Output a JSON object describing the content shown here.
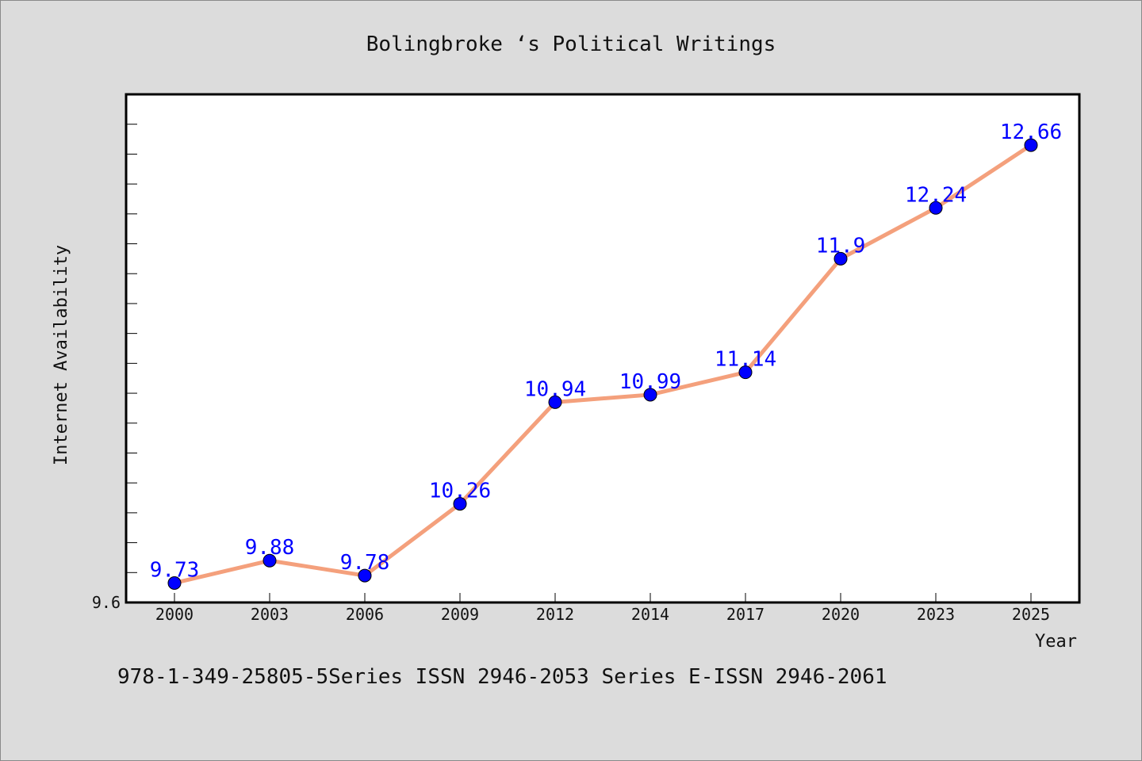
{
  "chart_data": {
    "type": "line",
    "title": "Bolingbroke ‘s Political Writings",
    "xlabel": "Year",
    "ylabel": "Internet Availability",
    "categories": [
      "2000",
      "2003",
      "2006",
      "2009",
      "2012",
      "2014",
      "2017",
      "2020",
      "2023",
      "2025"
    ],
    "series": [
      {
        "values": [
          9.73,
          9.88,
          9.78,
          10.26,
          10.94,
          10.99,
          11.14,
          11.9,
          12.24,
          12.66
        ],
        "line_color": "#f4a07c",
        "marker_color": "#0000ff"
      }
    ],
    "data_labels": [
      "9.73",
      "9.88",
      "9.78",
      "10.26",
      "10.94",
      "10.99",
      "11.14",
      "11.9",
      "12.24",
      "12.66"
    ],
    "ylim": [
      9.6,
      13.0
    ],
    "y_tick_labels": [
      "9.6"
    ],
    "grid": false,
    "legend": false
  },
  "footer": {
    "text": "978-1-349-25805-5Series ISSN 2946-2053 Series E-ISSN 2946-2061"
  }
}
